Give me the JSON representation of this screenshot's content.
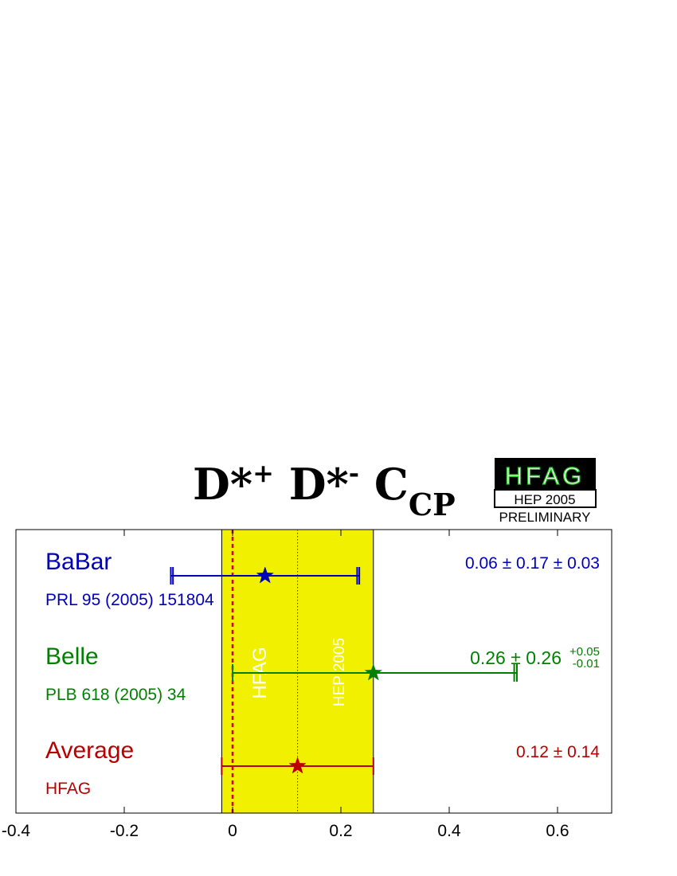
{
  "chart_data": {
    "type": "scatter",
    "title": {
      "main": "D*",
      "sup1": "+",
      "mid": " D*",
      "sup2": "-",
      "c": " C",
      "sub": "CP"
    },
    "xlim": [
      -0.4,
      0.7
    ],
    "xticks": [
      "-0.4",
      "-0.2",
      "0",
      "0.2",
      "0.4",
      "0.6"
    ],
    "xtick_values": [
      -0.4,
      -0.2,
      0,
      0.2,
      0.4,
      0.6
    ],
    "average_band": {
      "central": 0.12,
      "low": -0.02,
      "high": 0.26
    },
    "reference_line": 0,
    "band_labels": [
      "HFAG",
      "HEP 2005"
    ],
    "measurements": [
      {
        "name": "BaBar",
        "reference": "PRL 95 (2005) 151804",
        "value": 0.06,
        "stat_low": -0.11,
        "stat_high": 0.23,
        "tot_low": -0.114,
        "tot_high": 0.234,
        "result_text": {
          "central": "0.06 ± 0.17 ± 0.03"
        },
        "color": "#0000b8"
      },
      {
        "name": "Belle",
        "reference": "PLB 618 (2005) 34",
        "value": 0.26,
        "stat_low": 0.0,
        "stat_high": 0.52,
        "tot_low": 0.0,
        "tot_high": 0.525,
        "result_text": {
          "central": "0.26 ± 0.26",
          "sup": "+0.05",
          "sub": "-0.01"
        },
        "color": "#008000"
      },
      {
        "name": "Average",
        "reference": "HFAG",
        "value": 0.12,
        "stat_low": -0.02,
        "stat_high": 0.26,
        "tot_low": -0.02,
        "tot_high": 0.26,
        "result_text": {
          "central": "0.12 ± 0.14"
        },
        "color": "#b80000"
      }
    ],
    "colors": {
      "band": "#f0f000",
      "reference_line": "#d00000"
    }
  },
  "logo": {
    "name": "HFAG",
    "edition": "HEP 2005",
    "status": "PRELIMINARY"
  }
}
